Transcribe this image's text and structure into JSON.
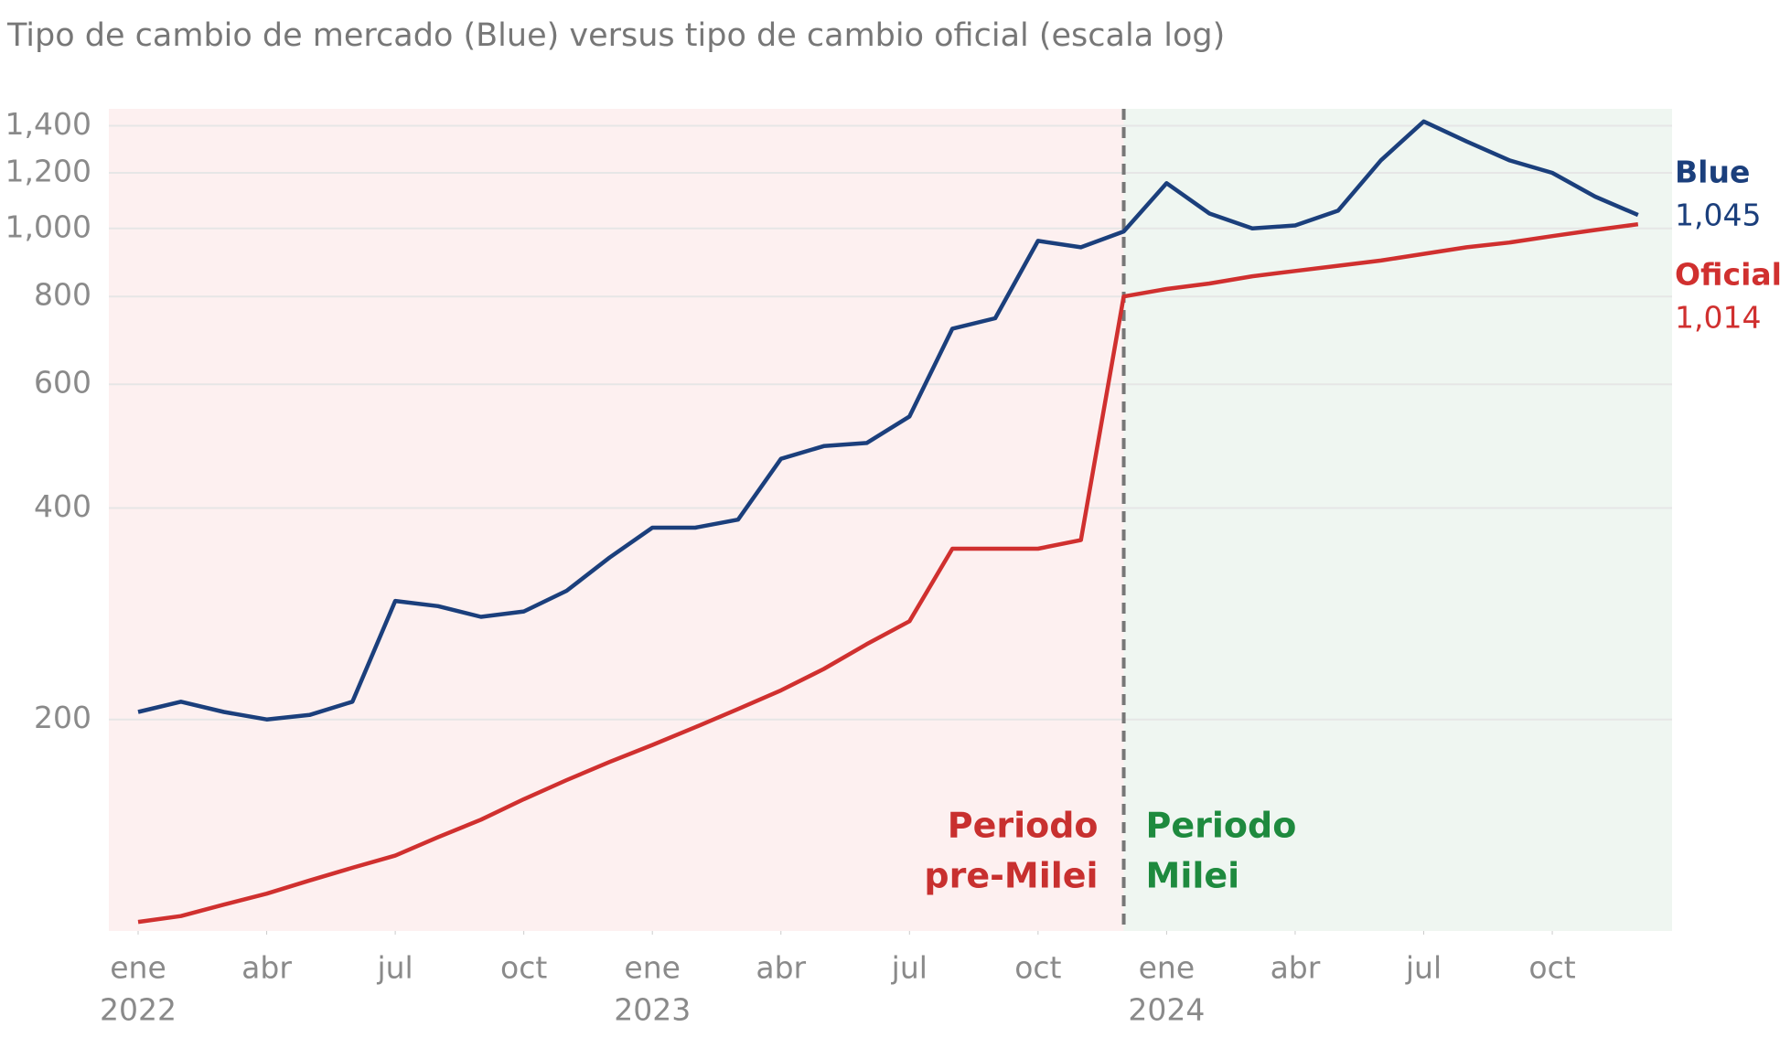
{
  "chart_data": {
    "type": "line",
    "title": "Tipo de cambio de mercado (Blue) versus tipo de cambio oficial (escala log)",
    "x": [
      "2022-01",
      "2022-02",
      "2022-03",
      "2022-04",
      "2022-05",
      "2022-06",
      "2022-07",
      "2022-08",
      "2022-09",
      "2022-10",
      "2022-11",
      "2022-12",
      "2023-01",
      "2023-02",
      "2023-03",
      "2023-04",
      "2023-05",
      "2023-06",
      "2023-07",
      "2023-08",
      "2023-09",
      "2023-10",
      "2023-11",
      "2023-12",
      "2024-01",
      "2024-02",
      "2024-03",
      "2024-04",
      "2024-05",
      "2024-06",
      "2024-07",
      "2024-08",
      "2024-09",
      "2024-10",
      "2024-11",
      "2024-12"
    ],
    "series": [
      {
        "name": "Blue",
        "color": "#1b3f7c",
        "end_label": "1,045",
        "values": [
          205,
          212,
          205,
          200,
          203,
          212,
          295,
          290,
          280,
          285,
          305,
          340,
          375,
          375,
          385,
          470,
          490,
          495,
          540,
          720,
          745,
          960,
          940,
          990,
          1160,
          1050,
          1000,
          1010,
          1060,
          1250,
          1420,
          1330,
          1250,
          1200,
          1110,
          1045
        ]
      },
      {
        "name": "Oficial",
        "color": "#d0302f",
        "end_label": "1,014",
        "values": [
          103,
          105,
          109,
          113,
          118,
          123,
          128,
          136,
          144,
          154,
          164,
          174,
          184,
          195,
          207,
          220,
          236,
          256,
          276,
          350,
          350,
          350,
          360,
          800,
          820,
          835,
          855,
          870,
          885,
          900,
          920,
          940,
          955,
          975,
          995,
          1014
        ]
      }
    ],
    "log_scale": true,
    "ylim": [
      100,
      1480
    ],
    "yticks": [
      {
        "value": 200,
        "label": "200"
      },
      {
        "value": 400,
        "label": "400"
      },
      {
        "value": 600,
        "label": "600"
      },
      {
        "value": 800,
        "label": "800"
      },
      {
        "value": 1000,
        "label": "1,000"
      },
      {
        "value": 1200,
        "label": "1,200"
      },
      {
        "value": 1400,
        "label": "1,400"
      }
    ],
    "xticks": [
      {
        "value": "2022-01",
        "label": "ene",
        "year": "2022"
      },
      {
        "value": "2022-04",
        "label": "abr"
      },
      {
        "value": "2022-07",
        "label": "jul"
      },
      {
        "value": "2022-10",
        "label": "oct"
      },
      {
        "value": "2023-01",
        "label": "ene",
        "year": "2023"
      },
      {
        "value": "2023-04",
        "label": "abr"
      },
      {
        "value": "2023-07",
        "label": "jul"
      },
      {
        "value": "2023-10",
        "label": "oct"
      },
      {
        "value": "2024-01",
        "label": "ene",
        "year": "2024"
      },
      {
        "value": "2024-04",
        "label": "abr"
      },
      {
        "value": "2024-07",
        "label": "jul"
      },
      {
        "value": "2024-10",
        "label": "oct"
      }
    ],
    "grid": true,
    "divider_x": "2023-12",
    "periods": [
      {
        "label": [
          "Periodo",
          "pre-Milei"
        ],
        "color": "#c8302f",
        "background": "#fdf0f0"
      },
      {
        "label": [
          "Periodo",
          "Milei"
        ],
        "color": "#1e8a3e",
        "background": "#eff6f1"
      }
    ]
  }
}
